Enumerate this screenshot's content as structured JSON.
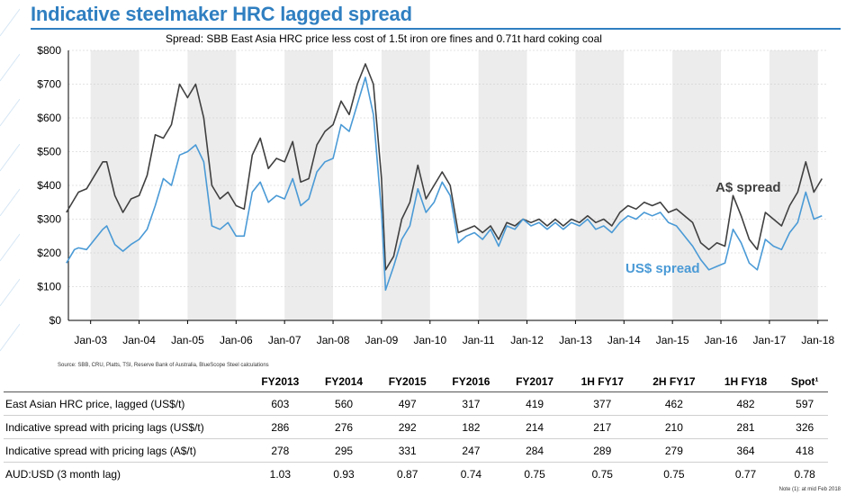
{
  "title": "Indicative steelmaker HRC lagged spread",
  "source": "Source:  SBB, CRU, Platts, TSI, Reserve Bank of Australia, BlueScope Steel calculations",
  "note": "Note (1): at mid Feb 2018",
  "colors": {
    "title": "#2f7fc1",
    "aud_series": "#404040",
    "usd_series": "#4a9ad6",
    "band": "#ececec"
  },
  "chart_data": {
    "type": "line",
    "title": "Spread:  SBB East Asia HRC price less cost of 1.5t iron ore fines and 0.71t hard coking coal",
    "xlabel": "",
    "ylabel": "",
    "ylim": [
      0,
      800
    ],
    "yticks": [
      0,
      100,
      200,
      300,
      400,
      500,
      600,
      700,
      800
    ],
    "ytick_labels": [
      "$0",
      "$100",
      "$200",
      "$300",
      "$400",
      "$500",
      "$600",
      "$700",
      "$800"
    ],
    "xticks": [
      "Jan-03",
      "Jan-04",
      "Jan-05",
      "Jan-06",
      "Jan-07",
      "Jan-08",
      "Jan-09",
      "Jan-10",
      "Jan-11",
      "Jan-12",
      "Jan-13",
      "Jan-14",
      "Jan-15",
      "Jan-16",
      "Jan-17",
      "Jan-18"
    ],
    "grid": true,
    "series": [
      {
        "name": "A$ spread",
        "points": [
          [
            "2002-07",
            320
          ],
          [
            "2002-09",
            360
          ],
          [
            "2002-10",
            380
          ],
          [
            "2002-12",
            390
          ],
          [
            "2003-02",
            430
          ],
          [
            "2003-04",
            470
          ],
          [
            "2003-05",
            470
          ],
          [
            "2003-07",
            370
          ],
          [
            "2003-09",
            320
          ],
          [
            "2003-11",
            360
          ],
          [
            "2004-01",
            370
          ],
          [
            "2004-03",
            430
          ],
          [
            "2004-05",
            550
          ],
          [
            "2004-07",
            540
          ],
          [
            "2004-09",
            580
          ],
          [
            "2004-11",
            700
          ],
          [
            "2005-01",
            660
          ],
          [
            "2005-03",
            700
          ],
          [
            "2005-05",
            600
          ],
          [
            "2005-07",
            400
          ],
          [
            "2005-09",
            360
          ],
          [
            "2005-11",
            380
          ],
          [
            "2006-01",
            340
          ],
          [
            "2006-03",
            330
          ],
          [
            "2006-05",
            490
          ],
          [
            "2006-07",
            540
          ],
          [
            "2006-09",
            450
          ],
          [
            "2006-11",
            480
          ],
          [
            "2007-01",
            470
          ],
          [
            "2007-03",
            530
          ],
          [
            "2007-05",
            410
          ],
          [
            "2007-07",
            420
          ],
          [
            "2007-09",
            520
          ],
          [
            "2007-11",
            560
          ],
          [
            "2008-01",
            580
          ],
          [
            "2008-03",
            650
          ],
          [
            "2008-05",
            610
          ],
          [
            "2008-07",
            700
          ],
          [
            "2008-09",
            760
          ],
          [
            "2008-11",
            700
          ],
          [
            "2009-01",
            420
          ],
          [
            "2009-02",
            150
          ],
          [
            "2009-04",
            190
          ],
          [
            "2009-06",
            300
          ],
          [
            "2009-08",
            350
          ],
          [
            "2009-10",
            460
          ],
          [
            "2009-12",
            360
          ],
          [
            "2010-02",
            400
          ],
          [
            "2010-04",
            440
          ],
          [
            "2010-06",
            400
          ],
          [
            "2010-08",
            260
          ],
          [
            "2010-10",
            270
          ],
          [
            "2010-12",
            280
          ],
          [
            "2011-02",
            260
          ],
          [
            "2011-04",
            280
          ],
          [
            "2011-06",
            240
          ],
          [
            "2011-08",
            290
          ],
          [
            "2011-10",
            280
          ],
          [
            "2011-12",
            300
          ],
          [
            "2012-02",
            290
          ],
          [
            "2012-04",
            300
          ],
          [
            "2012-06",
            280
          ],
          [
            "2012-08",
            300
          ],
          [
            "2012-10",
            280
          ],
          [
            "2012-12",
            300
          ],
          [
            "2013-02",
            290
          ],
          [
            "2013-04",
            310
          ],
          [
            "2013-06",
            290
          ],
          [
            "2013-08",
            300
          ],
          [
            "2013-10",
            280
          ],
          [
            "2013-12",
            320
          ],
          [
            "2014-02",
            340
          ],
          [
            "2014-04",
            330
          ],
          [
            "2014-06",
            350
          ],
          [
            "2014-08",
            340
          ],
          [
            "2014-10",
            350
          ],
          [
            "2014-12",
            320
          ],
          [
            "2015-02",
            330
          ],
          [
            "2015-04",
            310
          ],
          [
            "2015-06",
            290
          ],
          [
            "2015-08",
            230
          ],
          [
            "2015-10",
            210
          ],
          [
            "2015-12",
            230
          ],
          [
            "2016-02",
            220
          ],
          [
            "2016-04",
            370
          ],
          [
            "2016-06",
            310
          ],
          [
            "2016-08",
            240
          ],
          [
            "2016-10",
            210
          ],
          [
            "2016-12",
            320
          ],
          [
            "2017-02",
            300
          ],
          [
            "2017-04",
            280
          ],
          [
            "2017-06",
            340
          ],
          [
            "2017-08",
            380
          ],
          [
            "2017-10",
            470
          ],
          [
            "2017-12",
            380
          ],
          [
            "2018-02",
            420
          ]
        ]
      },
      {
        "name": "US$ spread",
        "points": [
          [
            "2002-07",
            170
          ],
          [
            "2002-09",
            210
          ],
          [
            "2002-10",
            215
          ],
          [
            "2002-12",
            210
          ],
          [
            "2003-02",
            240
          ],
          [
            "2003-04",
            270
          ],
          [
            "2003-05",
            280
          ],
          [
            "2003-07",
            225
          ],
          [
            "2003-09",
            205
          ],
          [
            "2003-11",
            225
          ],
          [
            "2004-01",
            240
          ],
          [
            "2004-03",
            270
          ],
          [
            "2004-05",
            340
          ],
          [
            "2004-07",
            420
          ],
          [
            "2004-09",
            400
          ],
          [
            "2004-11",
            490
          ],
          [
            "2005-01",
            500
          ],
          [
            "2005-03",
            520
          ],
          [
            "2005-05",
            470
          ],
          [
            "2005-07",
            280
          ],
          [
            "2005-09",
            270
          ],
          [
            "2005-11",
            290
          ],
          [
            "2006-01",
            250
          ],
          [
            "2006-03",
            250
          ],
          [
            "2006-05",
            380
          ],
          [
            "2006-07",
            410
          ],
          [
            "2006-09",
            350
          ],
          [
            "2006-11",
            370
          ],
          [
            "2007-01",
            360
          ],
          [
            "2007-03",
            420
          ],
          [
            "2007-05",
            340
          ],
          [
            "2007-07",
            360
          ],
          [
            "2007-09",
            440
          ],
          [
            "2007-11",
            470
          ],
          [
            "2008-01",
            480
          ],
          [
            "2008-03",
            580
          ],
          [
            "2008-05",
            560
          ],
          [
            "2008-07",
            640
          ],
          [
            "2008-09",
            720
          ],
          [
            "2008-11",
            610
          ],
          [
            "2009-01",
            320
          ],
          [
            "2009-02",
            90
          ],
          [
            "2009-04",
            160
          ],
          [
            "2009-06",
            240
          ],
          [
            "2009-08",
            280
          ],
          [
            "2009-10",
            390
          ],
          [
            "2009-12",
            320
          ],
          [
            "2010-02",
            350
          ],
          [
            "2010-04",
            410
          ],
          [
            "2010-06",
            370
          ],
          [
            "2010-08",
            230
          ],
          [
            "2010-10",
            250
          ],
          [
            "2010-12",
            260
          ],
          [
            "2011-02",
            240
          ],
          [
            "2011-04",
            270
          ],
          [
            "2011-06",
            220
          ],
          [
            "2011-08",
            280
          ],
          [
            "2011-10",
            270
          ],
          [
            "2011-12",
            300
          ],
          [
            "2012-02",
            280
          ],
          [
            "2012-04",
            290
          ],
          [
            "2012-06",
            270
          ],
          [
            "2012-08",
            290
          ],
          [
            "2012-10",
            270
          ],
          [
            "2012-12",
            290
          ],
          [
            "2013-02",
            280
          ],
          [
            "2013-04",
            300
          ],
          [
            "2013-06",
            270
          ],
          [
            "2013-08",
            280
          ],
          [
            "2013-10",
            260
          ],
          [
            "2013-12",
            290
          ],
          [
            "2014-02",
            310
          ],
          [
            "2014-04",
            300
          ],
          [
            "2014-06",
            320
          ],
          [
            "2014-08",
            310
          ],
          [
            "2014-10",
            320
          ],
          [
            "2014-12",
            290
          ],
          [
            "2015-02",
            280
          ],
          [
            "2015-04",
            250
          ],
          [
            "2015-06",
            220
          ],
          [
            "2015-08",
            180
          ],
          [
            "2015-10",
            150
          ],
          [
            "2015-12",
            160
          ],
          [
            "2016-02",
            170
          ],
          [
            "2016-04",
            270
          ],
          [
            "2016-06",
            230
          ],
          [
            "2016-08",
            170
          ],
          [
            "2016-10",
            150
          ],
          [
            "2016-12",
            240
          ],
          [
            "2017-02",
            220
          ],
          [
            "2017-04",
            210
          ],
          [
            "2017-06",
            260
          ],
          [
            "2017-08",
            290
          ],
          [
            "2017-10",
            380
          ],
          [
            "2017-12",
            300
          ],
          [
            "2018-02",
            310
          ]
        ]
      }
    ],
    "annotations": [
      {
        "text": "A$ spread",
        "series": "A$ spread",
        "color": "#404040"
      },
      {
        "text": "US$ spread",
        "series": "US$ spread",
        "color": "#4a9ad6"
      }
    ]
  },
  "table": {
    "columns": [
      "",
      "FY2013",
      "FY2014",
      "FY2015",
      "FY2016",
      "FY2017",
      "1H FY17",
      "2H FY17",
      "1H FY18",
      "Spot¹"
    ],
    "rows": [
      {
        "label": "East Asian HRC price, lagged (US$/t)",
        "values": [
          "603",
          "560",
          "497",
          "317",
          "419",
          "377",
          "462",
          "482",
          "597"
        ]
      },
      {
        "label": "Indicative spread with pricing lags (US$/t)",
        "values": [
          "286",
          "276",
          "292",
          "182",
          "214",
          "217",
          "210",
          "281",
          "326"
        ]
      },
      {
        "label": "Indicative spread with pricing lags (A$/t)",
        "values": [
          "278",
          "295",
          "331",
          "247",
          "284",
          "289",
          "279",
          "364",
          "418"
        ]
      },
      {
        "label": "AUD:USD (3 month lag)",
        "values": [
          "1.03",
          "0.93",
          "0.87",
          "0.74",
          "0.75",
          "0.75",
          "0.75",
          "0.77",
          "0.78"
        ]
      }
    ]
  }
}
